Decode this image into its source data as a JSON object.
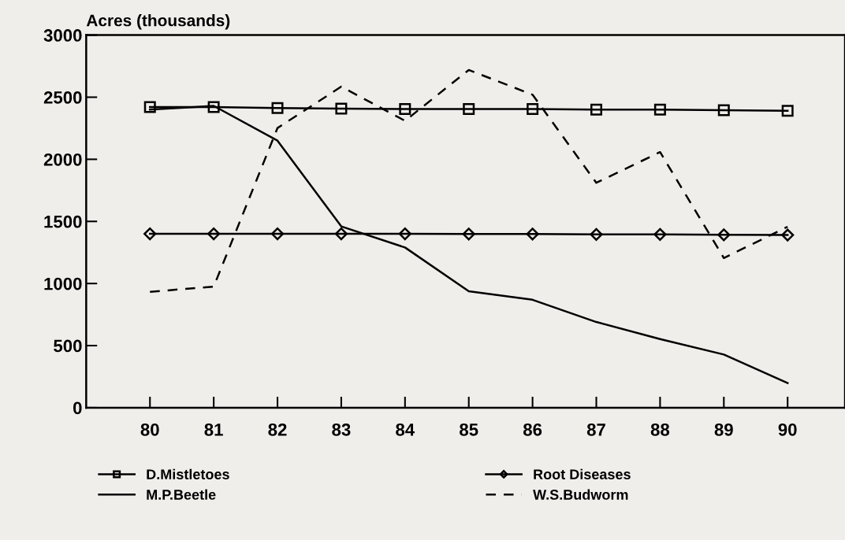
{
  "chart_data": {
    "type": "line",
    "ylabel": "Acres (thousands)",
    "categories": [
      "80",
      "81",
      "82",
      "83",
      "84",
      "85",
      "86",
      "87",
      "88",
      "89",
      "90"
    ],
    "ylim": [
      0,
      3000
    ],
    "yticks": [
      0,
      500,
      1000,
      1500,
      2000,
      2500,
      3000
    ],
    "legend": "bottom",
    "grid": false,
    "series": [
      {
        "name": "D.Mistletoes",
        "color": "#000000",
        "marker": "square",
        "line_style": "solid",
        "values": [
          2420,
          2420,
          2413,
          2408,
          2405,
          2405,
          2405,
          2400,
          2400,
          2395,
          2390
        ]
      },
      {
        "name": "Root Diseases",
        "color": "#000000",
        "marker": "diamond",
        "line_style": "solid",
        "values": [
          1400,
          1400,
          1400,
          1400,
          1400,
          1398,
          1398,
          1395,
          1395,
          1392,
          1390
        ]
      },
      {
        "name": "M.P.Beetle",
        "color": "#000000",
        "marker": "none",
        "line_style": "solid",
        "values": [
          2400,
          2430,
          2150,
          1460,
          1290,
          937,
          869,
          690,
          553,
          428,
          199
        ]
      },
      {
        "name": "W.S.Budworm",
        "color": "#000000",
        "marker": "none",
        "line_style": "dashed",
        "values": [
          933,
          975,
          2252,
          2585,
          2310,
          2719,
          2520,
          1811,
          2058,
          1205,
          1457
        ]
      }
    ]
  }
}
